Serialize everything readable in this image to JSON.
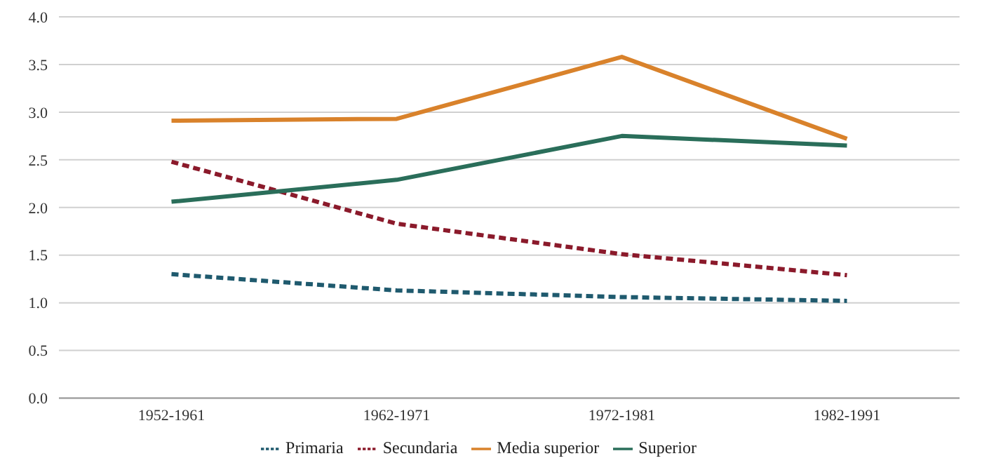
{
  "chart_data": {
    "type": "line",
    "categories": [
      "1952-1961",
      "1962-1971",
      "1972-1981",
      "1982-1991"
    ],
    "series": [
      {
        "name": "Primaria",
        "color": "#1f5a6e",
        "line_style": "dashed",
        "values": [
          1.3,
          1.13,
          1.06,
          1.02
        ]
      },
      {
        "name": "Secundaria",
        "color": "#8b1a2b",
        "line_style": "dashed",
        "values": [
          2.48,
          1.83,
          1.51,
          1.29
        ]
      },
      {
        "name": "Media superior",
        "color": "#d9822b",
        "line_style": "solid",
        "values": [
          2.91,
          2.93,
          3.58,
          2.72
        ]
      },
      {
        "name": "Superior",
        "color": "#2a6e5a",
        "line_style": "solid",
        "values": [
          2.06,
          2.29,
          2.75,
          2.65
        ]
      }
    ],
    "ylim": [
      0,
      4
    ],
    "yticks": [
      {
        "value": 0,
        "label": "0.0"
      },
      0.5,
      {
        "value": 1,
        "label": "1.0"
      },
      1.5,
      {
        "value": 2,
        "label": "2.0"
      },
      2.5,
      {
        "value": 3,
        "label": "3.0"
      },
      3.5,
      {
        "value": 4,
        "label": "4.0"
      }
    ],
    "grid": "y",
    "legend": "bottom",
    "marker": "none"
  }
}
